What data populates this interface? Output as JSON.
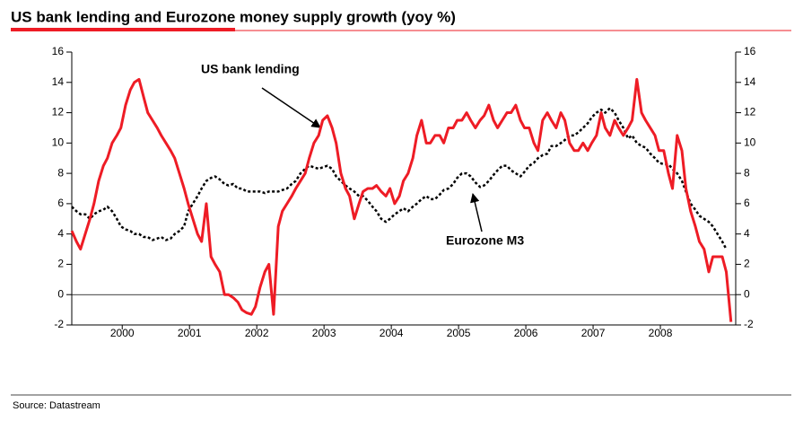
{
  "chart_data": {
    "type": "line",
    "title": "US bank lending and Eurozone money supply growth (yoy %)",
    "source": "Source: Datastream",
    "annotations": [
      "US bank lending",
      "Eurozone M3"
    ],
    "xlim": [
      1999.75,
      2009.62
    ],
    "xticks": [
      {
        "value": 2000.5,
        "label": "2000"
      },
      {
        "value": 2001.5,
        "label": "2001"
      },
      {
        "value": 2002.5,
        "label": "2002"
      },
      {
        "value": 2003.5,
        "label": "2003"
      },
      {
        "value": 2004.5,
        "label": "2004"
      },
      {
        "value": 2005.5,
        "label": "2005"
      },
      {
        "value": 2006.5,
        "label": "2006"
      },
      {
        "value": 2007.5,
        "label": "2007"
      },
      {
        "value": 2008.5,
        "label": "2008"
      }
    ],
    "ylim": [
      -2,
      16
    ],
    "yticks": [
      -2,
      0,
      2,
      4,
      6,
      8,
      10,
      12,
      14,
      16
    ],
    "y2lim": [
      -2,
      16
    ],
    "y2ticks": [
      -2,
      0,
      2,
      4,
      6,
      8,
      10,
      12,
      14,
      16
    ],
    "x": [
      1999.75,
      1999.82,
      1999.88,
      1999.95,
      2000.02,
      2000.08,
      2000.15,
      2000.22,
      2000.28,
      2000.35,
      2000.42,
      2000.48,
      2000.55,
      2000.62,
      2000.68,
      2000.75,
      2000.82,
      2000.88,
      2000.95,
      2001.02,
      2001.08,
      2001.15,
      2001.22,
      2001.28,
      2001.35,
      2001.42,
      2001.48,
      2001.55,
      2001.62,
      2001.68,
      2001.75,
      2001.82,
      2001.88,
      2001.95,
      2002.02,
      2002.08,
      2002.15,
      2002.22,
      2002.28,
      2002.35,
      2002.42,
      2002.48,
      2002.55,
      2002.62,
      2002.68,
      2002.75,
      2002.82,
      2002.88,
      2002.95,
      2003.02,
      2003.08,
      2003.15,
      2003.22,
      2003.28,
      2003.35,
      2003.42,
      2003.48,
      2003.55,
      2003.62,
      2003.68,
      2003.75,
      2003.82,
      2003.88,
      2003.95,
      2004.02,
      2004.08,
      2004.15,
      2004.22,
      2004.28,
      2004.35,
      2004.42,
      2004.48,
      2004.55,
      2004.62,
      2004.68,
      2004.75,
      2004.82,
      2004.88,
      2004.95,
      2005.02,
      2005.08,
      2005.15,
      2005.22,
      2005.28,
      2005.35,
      2005.42,
      2005.48,
      2005.55,
      2005.62,
      2005.68,
      2005.75,
      2005.82,
      2005.88,
      2005.95,
      2006.02,
      2006.08,
      2006.15,
      2006.22,
      2006.28,
      2006.35,
      2006.42,
      2006.48,
      2006.55,
      2006.62,
      2006.68,
      2006.75,
      2006.82,
      2006.88,
      2006.95,
      2007.02,
      2007.08,
      2007.15,
      2007.22,
      2007.28,
      2007.35,
      2007.42,
      2007.48,
      2007.55,
      2007.62,
      2007.68,
      2007.75,
      2007.82,
      2007.88,
      2007.95,
      2008.02,
      2008.08,
      2008.15,
      2008.22,
      2008.28,
      2008.35,
      2008.42,
      2008.48,
      2008.55,
      2008.62,
      2008.68,
      2008.75,
      2008.82,
      2008.88,
      2008.95,
      2009.02,
      2009.08,
      2009.15,
      2009.22,
      2009.28,
      2009.35,
      2009.42,
      2009.48,
      2009.55
    ],
    "series": [
      {
        "name": "US bank lending",
        "color": "#ee1c25",
        "line_style": "solid",
        "values": [
          4.2,
          3.5,
          3.0,
          4.0,
          5.0,
          6.0,
          7.5,
          8.5,
          9.0,
          10.0,
          10.5,
          11.0,
          12.5,
          13.5,
          14.0,
          14.2,
          13.0,
          12.0,
          11.5,
          11.0,
          10.5,
          10.0,
          9.5,
          9.0,
          8.0,
          7.0,
          6.0,
          5.0,
          4.0,
          3.5,
          6.0,
          2.5,
          2.0,
          1.5,
          0.0,
          0.0,
          -0.2,
          -0.5,
          -1.0,
          -1.2,
          -1.3,
          -0.8,
          0.5,
          1.5,
          2.0,
          -1.3,
          4.5,
          5.5,
          6.0,
          6.5,
          7.0,
          7.5,
          8.0,
          9.0,
          10.0,
          10.5,
          11.5,
          11.8,
          11.0,
          10.0,
          8.0,
          7.0,
          6.5,
          5.0,
          6.0,
          6.8,
          7.0,
          7.0,
          7.2,
          6.8,
          6.5,
          7.0,
          6.0,
          6.5,
          7.5,
          8.0,
          9.0,
          10.5,
          11.5,
          10.0,
          10.0,
          10.5,
          10.5,
          10.0,
          11.0,
          11.0,
          11.5,
          11.5,
          12.0,
          11.5,
          11.0,
          11.5,
          11.8,
          12.5,
          11.5,
          11.0,
          11.5,
          12.0,
          12.0,
          12.5,
          11.5,
          11.0,
          11.0,
          10.0,
          9.5,
          11.5,
          12.0,
          11.5,
          11.0,
          12.0,
          11.5,
          10.0,
          9.5,
          9.5,
          10.0,
          9.5,
          10.0,
          10.5,
          12.0,
          11.0,
          10.5,
          11.5,
          11.0,
          10.5,
          11.0,
          11.5,
          14.2,
          12.0,
          11.5,
          11.0,
          10.5,
          9.5,
          9.5,
          8.0,
          7.0,
          10.5,
          9.5,
          7.0,
          5.5,
          4.5,
          3.5,
          3.0,
          1.5,
          2.5,
          2.5,
          2.5,
          1.5,
          -1.8
        ]
      },
      {
        "name": "Eurozone M3",
        "color": "#000000",
        "line_style": "dotted",
        "values": [
          5.8,
          5.5,
          5.3,
          5.3,
          5.0,
          5.3,
          5.5,
          5.6,
          5.8,
          5.5,
          5.0,
          4.5,
          4.3,
          4.2,
          4.0,
          4.0,
          3.8,
          3.8,
          3.6,
          3.7,
          3.8,
          3.6,
          3.7,
          4.0,
          4.2,
          4.5,
          5.5,
          6.0,
          6.5,
          7.0,
          7.5,
          7.7,
          7.8,
          7.6,
          7.3,
          7.2,
          7.3,
          7.0,
          7.0,
          6.8,
          6.8,
          6.8,
          6.8,
          6.7,
          6.8,
          6.8,
          6.8,
          6.9,
          7.0,
          7.3,
          7.5,
          8.0,
          8.3,
          8.5,
          8.4,
          8.3,
          8.4,
          8.5,
          8.3,
          7.8,
          7.5,
          7.2,
          7.0,
          6.8,
          6.5,
          6.5,
          6.2,
          5.8,
          5.5,
          5.0,
          4.8,
          5.0,
          5.3,
          5.5,
          5.7,
          5.5,
          5.8,
          6.0,
          6.3,
          6.5,
          6.3,
          6.3,
          6.6,
          6.9,
          7.0,
          7.3,
          7.7,
          8.0,
          8.0,
          7.8,
          7.4,
          7.1,
          7.2,
          7.5,
          7.9,
          8.2,
          8.5,
          8.5,
          8.2,
          8.0,
          7.8,
          8.1,
          8.5,
          8.7,
          9.0,
          9.2,
          9.3,
          9.8,
          9.8,
          10.0,
          10.2,
          10.5,
          10.5,
          10.7,
          11.0,
          11.3,
          11.7,
          12.0,
          12.2,
          12.0,
          12.3,
          12.0,
          11.5,
          11.0,
          10.3,
          10.5,
          10.0,
          9.8,
          9.7,
          9.3,
          9.0,
          8.7,
          8.6,
          8.6,
          8.3,
          8.0,
          7.5,
          6.8,
          6.0,
          5.6,
          5.2,
          5.0,
          4.8,
          4.5,
          4.0,
          3.5,
          3.0,
          null
        ]
      }
    ]
  }
}
